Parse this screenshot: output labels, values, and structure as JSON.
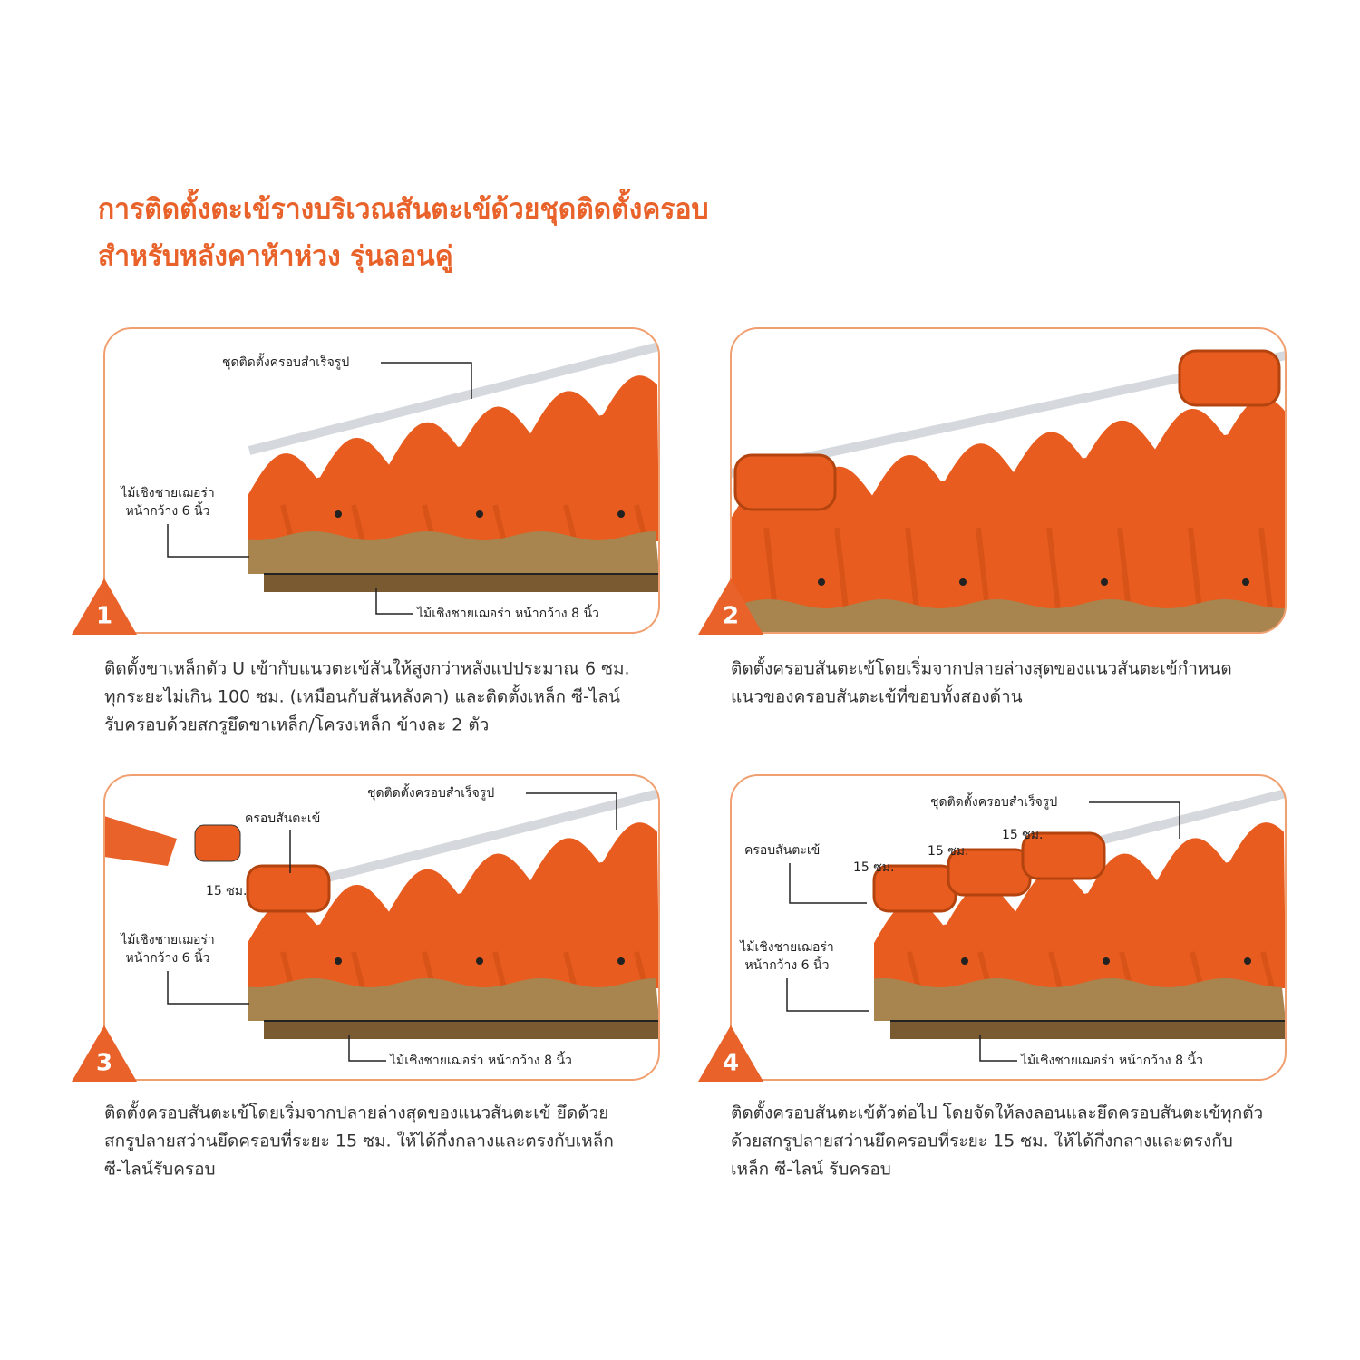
{
  "header": {
    "title": [
      "การติดตั้งตะเข้รางบริเวณสันตะเข้ด้วยชุดติดตั้งครอบ",
      "สำหรับหลังคาห้าห่วง รุ่นลอนคู่"
    ]
  },
  "steps": [
    {
      "number": "1",
      "labels": {
        "rail": "ชุดติดตั้งครอบสำเร็จรูป",
        "wood6": [
          "ไม้เชิงชายเฌอร่า",
          "หน้ากว้าง 6 นิ้ว"
        ],
        "wood8": "ไม้เชิงชายเฌอร่า หน้ากว้าง 8 นิ้ว"
      },
      "description": [
        "ติดตั้งขาเหล็กตัว U เข้ากับแนวตะเข้สันให้สูงกว่าหลังแปประมาณ 6 ซม.",
        "ทุกระยะไม่เกิน 100 ซม. (เหมือนกับสันหลังคา) และติดตั้งเหล็ก ซี-ไลน์",
        "รับครอบด้วยสกรูยึดขาเหล็ก/โครงเหล็ก ข้างละ 2 ตัว"
      ]
    },
    {
      "number": "2",
      "description": [
        "ติดตั้งครอบสันตะเข้โดยเริ่มจากปลายล่างสุดของแนวสันตะเข้กำหนด",
        "แนวของครอบสันตะเข้ที่ขอบทั้งสองด้าน"
      ]
    },
    {
      "number": "3",
      "labels": {
        "rail": "ชุดติดตั้งครอบสำเร็จรูป",
        "ridge": "ครอบสันตะเข้",
        "spacing": [
          "15 ซม."
        ],
        "wood6": [
          "ไม้เชิงชายเฌอร่า",
          "หน้ากว้าง 6 นิ้ว"
        ],
        "wood8": "ไม้เชิงชายเฌอร่า หน้ากว้าง 8 นิ้ว"
      },
      "description": [
        "ติดตั้งครอบสันตะเข้โดยเริ่มจากปลายล่างสุดของแนวสันตะเข้ ยึดด้วย",
        "สกรูปลายสว่านยึดครอบที่ระยะ 15 ซม. ให้ได้กึ่งกลางและตรงกับเหล็ก",
        "ซี-ไลน์รับครอบ"
      ]
    },
    {
      "number": "4",
      "labels": {
        "rail": "ชุดติดตั้งครอบสำเร็จรูป",
        "ridge": "ครอบสันตะเข้",
        "spacing": [
          "15 ซม.",
          "15 ซม.",
          "15 ซม."
        ],
        "wood6": [
          "ไม้เชิงชายเฌอร่า",
          "หน้ากว้าง 6 นิ้ว"
        ],
        "wood8": "ไม้เชิงชายเฌอร่า หน้ากว้าง 8 นิ้ว"
      },
      "description": [
        "ติดตั้งครอบสันตะเข้ตัวต่อไป โดยจัดให้ลงลอนและยึดครอบสันตะเข้ทุกตัว",
        "ด้วยสกรูปลายสว่านยึดครอบที่ระยะ 15 ซม. ให้ได้กึ่งกลางและตรงกับ",
        "เหล็ก ซี-ไลน์ รับครอบ"
      ]
    }
  ]
}
